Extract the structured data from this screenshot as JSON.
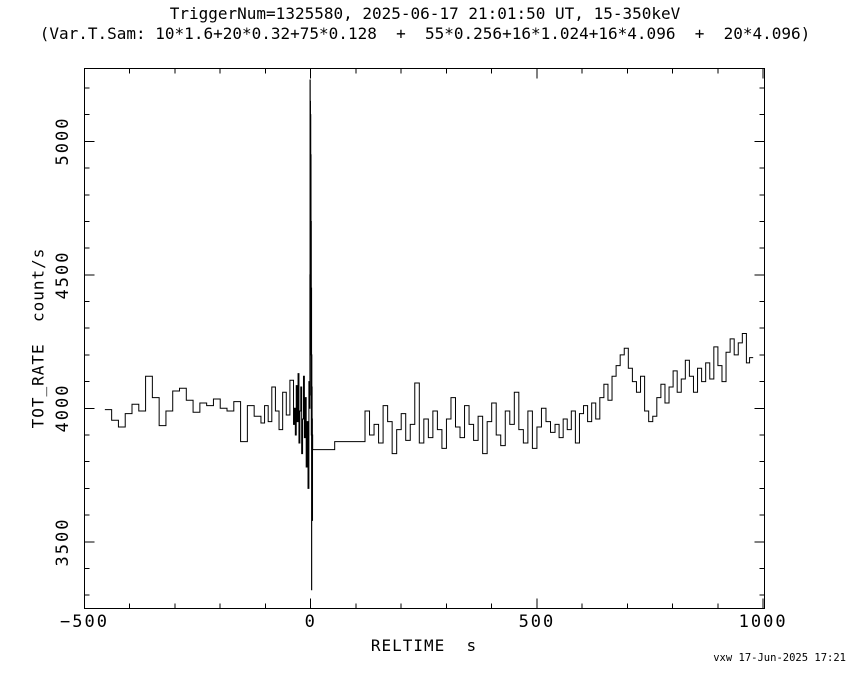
{
  "title": {
    "line1": "TriggerNum=1325580, 2025-06-17 21:01:50 UT, 15-350keV",
    "line2": "(Var.T.Sam: 10*1.6+20*0.32+75*0.128  +  55*0.256+16*1.024+16*4.096  +  20*4.096)"
  },
  "footer": {
    "credit": "vxw 17-Jun-2025 17:21"
  },
  "chart_data": {
    "type": "line",
    "style": "step-histogram",
    "title": "TriggerNum=1325580, 2025-06-17 21:01:50 UT, 15-350keV",
    "subtitle": "(Var.T.Sam: 10*1.6+20*0.32+75*0.128  +  55*0.256+16*1.024+16*4.096  +  20*4.096)",
    "xlabel": "RELTIME  s",
    "ylabel": "TOT_RATE  count/s",
    "xlim": [
      -500,
      1003
    ],
    "ylim": [
      3250,
      5273
    ],
    "grid": false,
    "legend": "none",
    "line_color": "#000000",
    "background": "#ffffff",
    "x_major_ticks": [
      -500,
      0,
      500,
      1000
    ],
    "x_tick_labels": [
      "−500",
      "0",
      "500",
      "1000"
    ],
    "x_minor_step": 100,
    "y_major_ticks": [
      3500,
      4000,
      4500,
      5000
    ],
    "y_tick_labels": [
      "3500",
      "4000",
      "4500",
      "5000"
    ],
    "y_minor_step": 100,
    "points": [
      [
        -455,
        3995
      ],
      [
        -440,
        3955
      ],
      [
        -425,
        3930
      ],
      [
        -410,
        3980
      ],
      [
        -395,
        4015
      ],
      [
        -380,
        3990
      ],
      [
        -365,
        4120
      ],
      [
        -350,
        4040
      ],
      [
        -335,
        3935
      ],
      [
        -320,
        3990
      ],
      [
        -305,
        4065
      ],
      [
        -290,
        4075
      ],
      [
        -275,
        4030
      ],
      [
        -260,
        3985
      ],
      [
        -245,
        4020
      ],
      [
        -230,
        4010
      ],
      [
        -215,
        4035
      ],
      [
        -200,
        4000
      ],
      [
        -185,
        3990
      ],
      [
        -170,
        4025
      ],
      [
        -155,
        3875
      ],
      [
        -140,
        4010
      ],
      [
        -125,
        3970
      ],
      [
        -110,
        3945
      ],
      [
        -102,
        4010
      ],
      [
        -94,
        3950
      ],
      [
        -86,
        4080
      ],
      [
        -78,
        3990
      ],
      [
        -70,
        3920
      ],
      [
        -62,
        4060
      ],
      [
        -54,
        3975
      ],
      [
        -46,
        4105
      ],
      [
        -38,
        3940
      ],
      [
        -36,
        4000
      ],
      [
        -34,
        3900
      ],
      [
        -32,
        4085
      ],
      [
        -30,
        3950
      ],
      [
        -28,
        4130
      ],
      [
        -26,
        3870
      ],
      [
        -24,
        3990
      ],
      [
        -22,
        4080
      ],
      [
        -20,
        3830
      ],
      [
        -18,
        3960
      ],
      [
        -16,
        4120
      ],
      [
        -14,
        3890
      ],
      [
        -12,
        4040
      ],
      [
        -10,
        3780
      ],
      [
        -8,
        3950
      ],
      [
        -6,
        3700
      ],
      [
        -4,
        4100
      ],
      [
        -2,
        4000
      ],
      [
        -1.8,
        4500
      ],
      [
        -1.5,
        5230
      ],
      [
        -1.1,
        4300
      ],
      [
        -0.8,
        5150
      ],
      [
        -0.5,
        4200
      ],
      [
        -0.2,
        5100
      ],
      [
        0.1,
        4350
      ],
      [
        0.4,
        4950
      ],
      [
        0.7,
        4050
      ],
      [
        1.0,
        4700
      ],
      [
        1.3,
        3900
      ],
      [
        1.6,
        4450
      ],
      [
        1.9,
        3320
      ],
      [
        2.2,
        4200
      ],
      [
        2.5,
        3800
      ],
      [
        2.8,
        4080
      ],
      [
        3.1,
        3650
      ],
      [
        3.4,
        3960
      ],
      [
        3.7,
        3580
      ],
      [
        4.0,
        3900
      ],
      [
        4.3,
        3845
      ],
      [
        53,
        3875
      ],
      [
        120,
        3990
      ],
      [
        130,
        3900
      ],
      [
        140,
        3940
      ],
      [
        150,
        3870
      ],
      [
        160,
        4010
      ],
      [
        170,
        3950
      ],
      [
        180,
        3830
      ],
      [
        190,
        3920
      ],
      [
        200,
        3980
      ],
      [
        210,
        3880
      ],
      [
        220,
        3940
      ],
      [
        230,
        4095
      ],
      [
        240,
        3870
      ],
      [
        250,
        3960
      ],
      [
        260,
        3890
      ],
      [
        270,
        3990
      ],
      [
        280,
        3920
      ],
      [
        290,
        3850
      ],
      [
        300,
        3960
      ],
      [
        310,
        4040
      ],
      [
        320,
        3930
      ],
      [
        330,
        3890
      ],
      [
        340,
        4010
      ],
      [
        350,
        3940
      ],
      [
        360,
        3880
      ],
      [
        370,
        3970
      ],
      [
        380,
        3830
      ],
      [
        390,
        3950
      ],
      [
        400,
        4020
      ],
      [
        410,
        3900
      ],
      [
        420,
        3860
      ],
      [
        430,
        3990
      ],
      [
        440,
        3940
      ],
      [
        450,
        4060
      ],
      [
        460,
        3920
      ],
      [
        470,
        3870
      ],
      [
        480,
        3990
      ],
      [
        490,
        3850
      ],
      [
        500,
        3930
      ],
      [
        510,
        4000
      ],
      [
        520,
        3950
      ],
      [
        530,
        3910
      ],
      [
        540,
        3940
      ],
      [
        549,
        3890
      ],
      [
        558,
        3960
      ],
      [
        567,
        3920
      ],
      [
        576,
        3990
      ],
      [
        585,
        3870
      ],
      [
        594,
        3980
      ],
      [
        603,
        4010
      ],
      [
        612,
        3950
      ],
      [
        621,
        4020
      ],
      [
        630,
        3960
      ],
      [
        639,
        4040
      ],
      [
        648,
        4090
      ],
      [
        657,
        4030
      ],
      [
        666,
        4120
      ],
      [
        675,
        4160
      ],
      [
        684,
        4200
      ],
      [
        693,
        4225
      ],
      [
        702,
        4150
      ],
      [
        711,
        4100
      ],
      [
        720,
        4060
      ],
      [
        729,
        4120
      ],
      [
        738,
        3990
      ],
      [
        747,
        3950
      ],
      [
        756,
        3970
      ],
      [
        765,
        4040
      ],
      [
        774,
        4090
      ],
      [
        783,
        4020
      ],
      [
        792,
        4080
      ],
      [
        801,
        4140
      ],
      [
        810,
        4060
      ],
      [
        819,
        4110
      ],
      [
        828,
        4180
      ],
      [
        837,
        4120
      ],
      [
        846,
        4060
      ],
      [
        855,
        4150
      ],
      [
        864,
        4100
      ],
      [
        873,
        4170
      ],
      [
        882,
        4110
      ],
      [
        891,
        4230
      ],
      [
        900,
        4160
      ],
      [
        909,
        4100
      ],
      [
        918,
        4210
      ],
      [
        927,
        4260
      ],
      [
        936,
        4200
      ],
      [
        945,
        4245
      ],
      [
        954,
        4280
      ],
      [
        963,
        4170
      ],
      [
        970,
        4190
      ]
    ]
  }
}
